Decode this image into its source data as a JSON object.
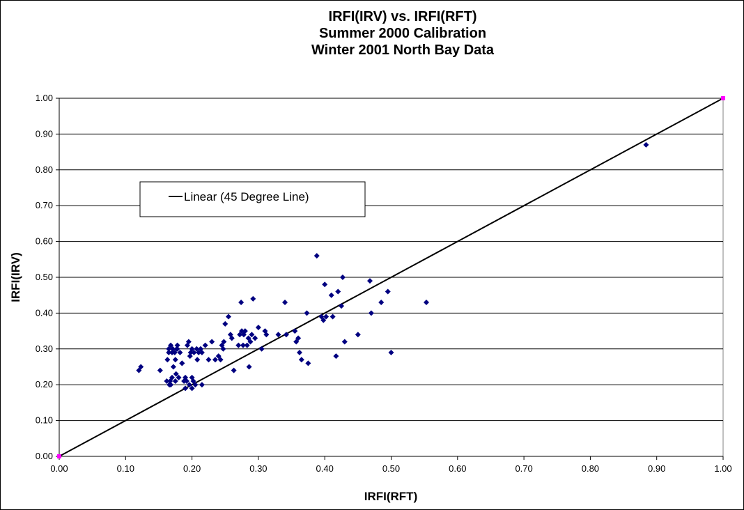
{
  "chart_data": {
    "type": "scatter",
    "title": [
      "IRFI(IRV) vs. IRFI(RFT)",
      "Summer 2000 Calibration",
      "Winter 2001 North Bay Data"
    ],
    "xlabel": "IRFI(RFT)",
    "ylabel": "IRFI(IRV)",
    "xlim": [
      0,
      1
    ],
    "ylim": [
      0,
      1
    ],
    "x_ticks": [
      "0.00",
      "0.10",
      "0.20",
      "0.30",
      "0.40",
      "0.50",
      "0.60",
      "0.70",
      "0.80",
      "0.90",
      "1.00"
    ],
    "y_ticks": [
      "0.00",
      "0.10",
      "0.20",
      "0.30",
      "0.40",
      "0.50",
      "0.60",
      "0.70",
      "0.80",
      "0.90",
      "1.00"
    ],
    "grid": "horizontal",
    "legend": {
      "placement": "upper-left",
      "entries": [
        "Linear (45 Degree Line)"
      ]
    },
    "colors": {
      "points": "#000080",
      "line": "#000000",
      "endpoints": "#ff00ff"
    },
    "series": [
      {
        "kind": "points",
        "x": [
          0.12,
          0.123,
          0.152,
          0.162,
          0.163,
          0.165,
          0.166,
          0.167,
          0.168,
          0.17,
          0.171,
          0.172,
          0.174,
          0.175,
          0.176,
          0.177,
          0.178,
          0.18,
          0.182,
          0.185,
          0.188,
          0.19,
          0.19,
          0.192,
          0.193,
          0.195,
          0.196,
          0.197,
          0.198,
          0.2,
          0.2,
          0.202,
          0.203,
          0.205,
          0.207,
          0.208,
          0.21,
          0.213,
          0.215,
          0.22,
          0.225,
          0.23,
          0.235,
          0.24,
          0.243,
          0.245,
          0.247,
          0.248,
          0.25,
          0.255,
          0.258,
          0.26,
          0.263,
          0.27,
          0.272,
          0.274,
          0.275,
          0.277,
          0.278,
          0.28,
          0.283,
          0.285,
          0.286,
          0.288,
          0.29,
          0.292,
          0.295,
          0.3,
          0.305,
          0.31,
          0.312,
          0.33,
          0.34,
          0.342,
          0.355,
          0.357,
          0.36,
          0.362,
          0.365,
          0.373,
          0.375,
          0.388,
          0.395,
          0.398,
          0.4,
          0.402,
          0.41,
          0.412,
          0.417,
          0.42,
          0.425,
          0.427,
          0.43,
          0.45,
          0.468,
          0.47,
          0.485,
          0.495,
          0.5,
          0.553,
          0.884,
          0.168,
          0.17,
          0.175,
          0.178,
          0.185,
          0.165,
          0.2,
          0.215
        ],
        "y": [
          0.24,
          0.25,
          0.24,
          0.21,
          0.27,
          0.3,
          0.2,
          0.21,
          0.31,
          0.22,
          0.3,
          0.25,
          0.29,
          0.21,
          0.23,
          0.3,
          0.31,
          0.22,
          0.29,
          0.26,
          0.21,
          0.19,
          0.22,
          0.21,
          0.31,
          0.32,
          0.2,
          0.28,
          0.29,
          0.3,
          0.19,
          0.21,
          0.29,
          0.2,
          0.3,
          0.27,
          0.29,
          0.3,
          0.29,
          0.31,
          0.27,
          0.32,
          0.27,
          0.28,
          0.27,
          0.31,
          0.3,
          0.32,
          0.37,
          0.39,
          0.34,
          0.33,
          0.24,
          0.31,
          0.34,
          0.43,
          0.35,
          0.31,
          0.34,
          0.35,
          0.31,
          0.33,
          0.25,
          0.32,
          0.34,
          0.44,
          0.33,
          0.36,
          0.3,
          0.35,
          0.34,
          0.34,
          0.43,
          0.34,
          0.35,
          0.32,
          0.33,
          0.29,
          0.27,
          0.4,
          0.26,
          0.56,
          0.39,
          0.38,
          0.48,
          0.39,
          0.45,
          0.39,
          0.28,
          0.46,
          0.42,
          0.5,
          0.32,
          0.34,
          0.49,
          0.4,
          0.43,
          0.46,
          0.29,
          0.43,
          0.87,
          0.2,
          0.29,
          0.27,
          0.3,
          0.26,
          0.29,
          0.22,
          0.2
        ]
      },
      {
        "name": "Linear (45 Degree Line)",
        "kind": "line",
        "x": [
          0,
          1
        ],
        "y": [
          0,
          1
        ]
      }
    ]
  }
}
